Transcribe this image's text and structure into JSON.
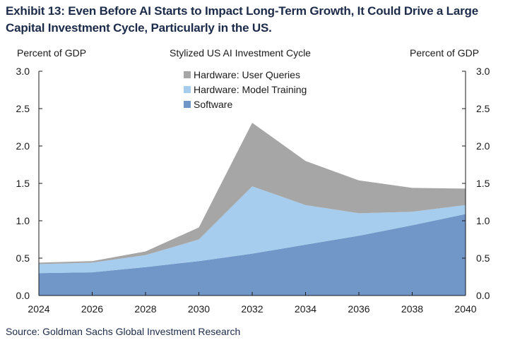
{
  "exhibit_title": "Exhibit 13: Even Before AI Starts to Impact Long-Term Growth, It Could Drive a Large Capital Investment Cycle, Particularly in the US.",
  "source": "Source: Goldman Sachs Global Investment Research",
  "chart_data": {
    "type": "area",
    "stacked": true,
    "title": "Stylized US  AI Investment  Cycle",
    "ylabel_left": "Percent  of GDP",
    "ylabel_right": "Percent  of GDP",
    "x": [
      2024,
      2026,
      2028,
      2030,
      2032,
      2034,
      2036,
      2038,
      2040
    ],
    "xticks": [
      "2024",
      "2026",
      "2028",
      "2030",
      "2032",
      "2034",
      "2036",
      "2038",
      "2040"
    ],
    "yticks": [
      "0.0",
      "0.5",
      "1.0",
      "1.5",
      "2.0",
      "2.5",
      "3.0"
    ],
    "ylim": [
      0,
      3
    ],
    "xlim": [
      2024,
      2040
    ],
    "grid": false,
    "legend_position": "top-center",
    "series": [
      {
        "name": "Software",
        "color": "#7196c8",
        "values": [
          0.3,
          0.31,
          0.38,
          0.46,
          0.56,
          0.68,
          0.8,
          0.94,
          1.09
        ]
      },
      {
        "name": "Hardware: Model Training",
        "color": "#a7cdee",
        "values": [
          0.12,
          0.13,
          0.16,
          0.29,
          0.9,
          0.53,
          0.3,
          0.18,
          0.12
        ]
      },
      {
        "name": "Hardware: User Queries",
        "color": "#a6a6a6",
        "values": [
          0.02,
          0.02,
          0.05,
          0.16,
          0.85,
          0.59,
          0.44,
          0.32,
          0.22
        ]
      }
    ],
    "legend_order": [
      "Hardware: User Queries",
      "Hardware: Model Training",
      "Software"
    ]
  }
}
